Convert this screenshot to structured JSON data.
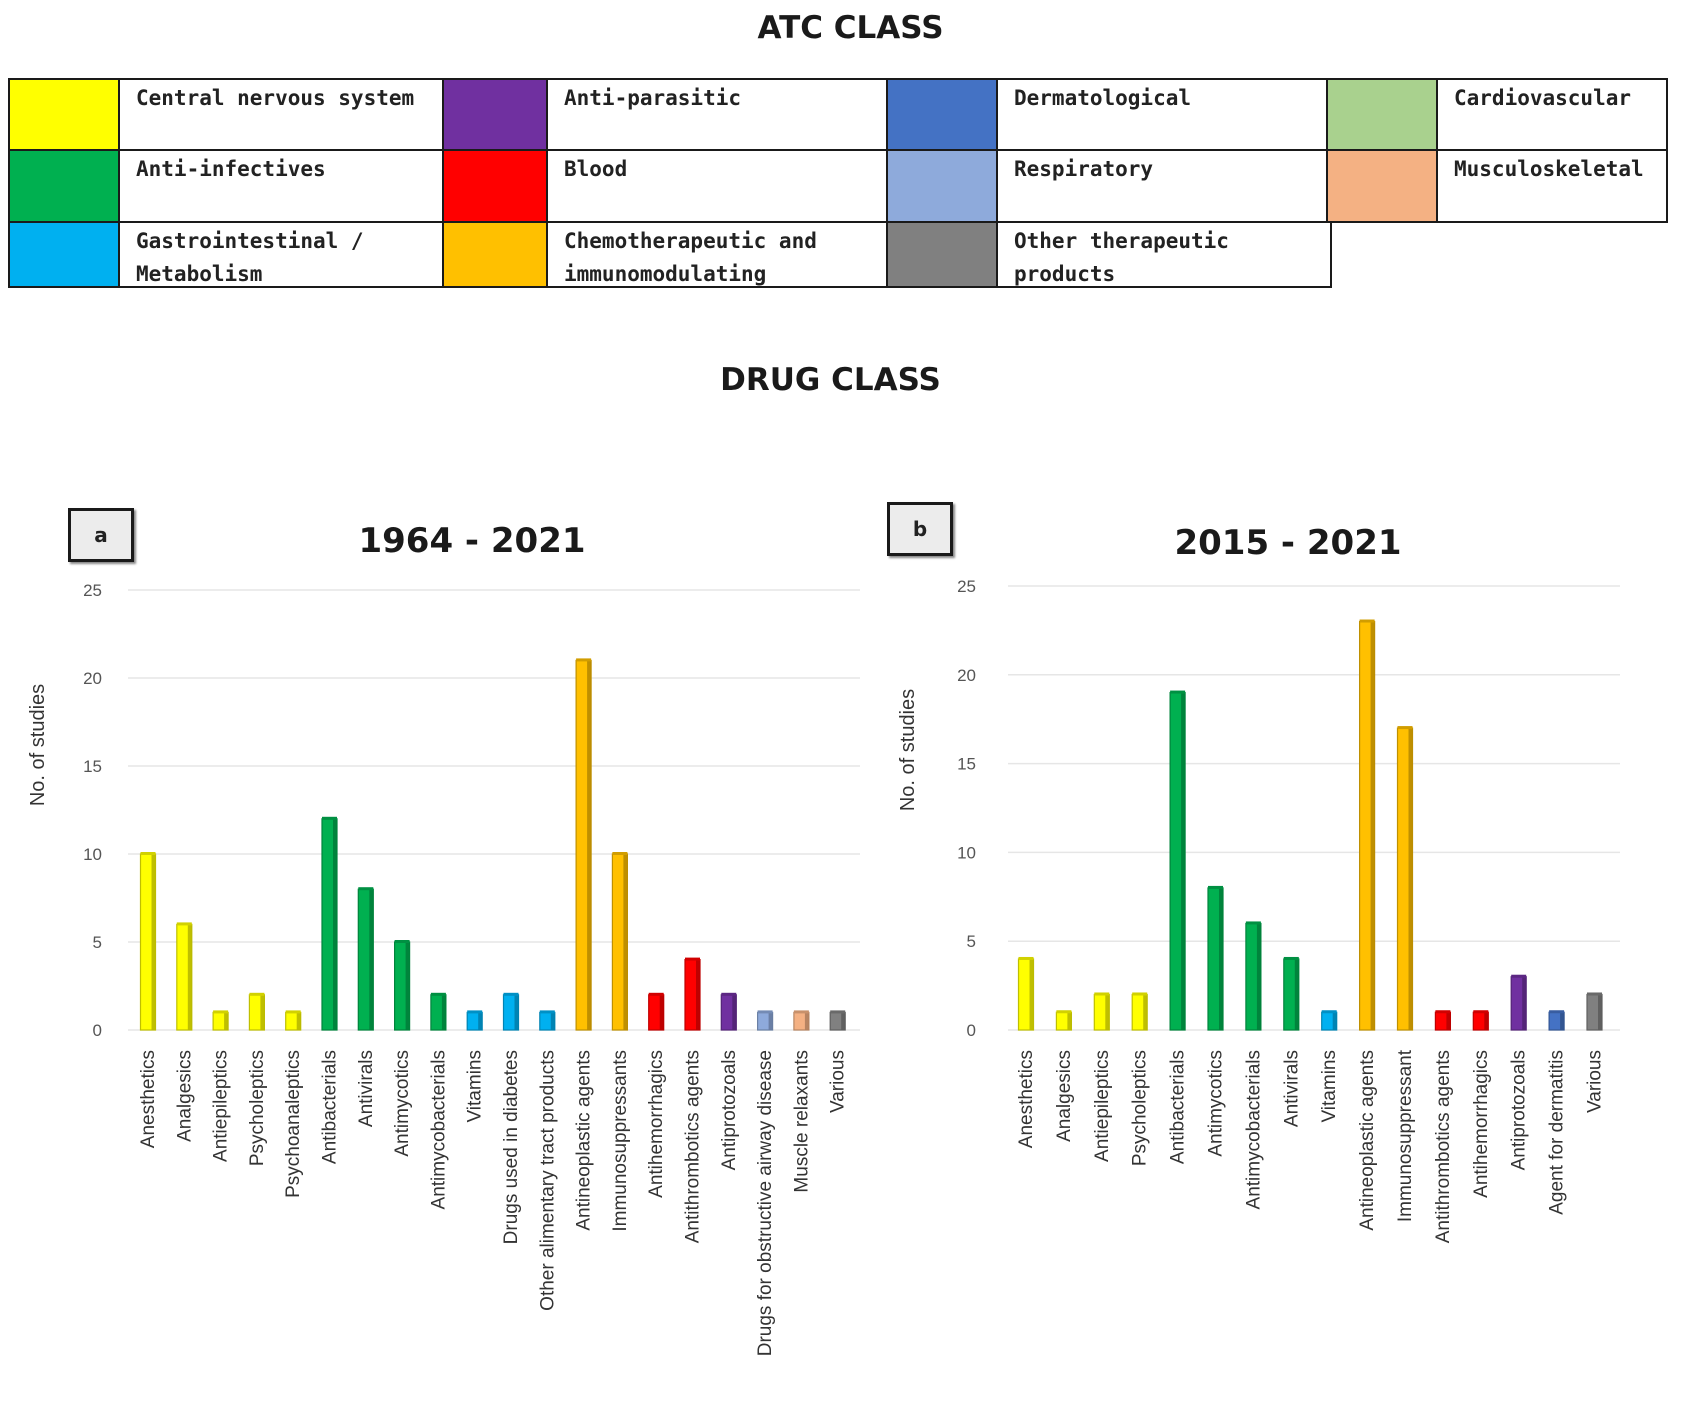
{
  "headings": {
    "atc": "ATC CLASS",
    "drug": "DRUG CLASS"
  },
  "colors": {
    "cns": "#ffff00",
    "antiparasitic": "#7030a0",
    "dermatological": "#4472c4",
    "cardiovascular": "#a9d18e",
    "antiinfectives": "#00b050",
    "blood": "#ff0000",
    "respiratory": "#8eaadb",
    "musculoskeletal": "#f4b183",
    "gastro": "#00b0f0",
    "chemo": "#ffc000",
    "other": "#808080"
  },
  "legend": [
    {
      "label": [
        "Central nervous system"
      ],
      "color_key": "cns"
    },
    {
      "label": [
        "Anti-parasitic"
      ],
      "color_key": "antiparasitic"
    },
    {
      "label": [
        "Dermatological"
      ],
      "color_key": "dermatological"
    },
    {
      "label": [
        "Cardiovascular"
      ],
      "color_key": "cardiovascular"
    },
    {
      "label": [
        "Anti-infectives"
      ],
      "color_key": "antiinfectives"
    },
    {
      "label": [
        "Blood"
      ],
      "color_key": "blood"
    },
    {
      "label": [
        "Respiratory"
      ],
      "color_key": "respiratory"
    },
    {
      "label": [
        "Musculoskeletal"
      ],
      "color_key": "musculoskeletal"
    },
    {
      "label": [
        "Gastrointestinal /",
        "Metabolism"
      ],
      "color_key": "gastro"
    },
    {
      "label": [
        "Chemotherapeutic and",
        "immunomodulating"
      ],
      "color_key": "chemo"
    },
    {
      "label": [
        "Other therapeutic",
        "products"
      ],
      "color_key": "other"
    }
  ],
  "chart_data": [
    {
      "type": "bar",
      "panel": "a",
      "title": "1964 - 2021",
      "ylabel": "No. of studies",
      "ylim": [
        0,
        25
      ],
      "yticks": [
        0,
        5,
        10,
        15,
        20,
        25
      ],
      "grid": true,
      "categories": [
        "Anesthetics",
        "Analgesics",
        "Antiepileptics",
        "Psycholeptics",
        "Psychoanaleptics",
        "Antibacterials",
        "Antivirals",
        "Antimycotics",
        "Antimycobacterials",
        "Vitamins",
        "Drugs used in diabetes",
        "Other alimentary tract products",
        "Antineoplastic agents",
        "Immunosuppressants",
        "Antihemorrhagics",
        "Antithrombotics agents",
        "Antiprotozoals",
        "Drugs for obstructive airway disease",
        "Muscle relaxants",
        "Various"
      ],
      "values": [
        10,
        6,
        1,
        2,
        1,
        12,
        8,
        5,
        2,
        1,
        2,
        1,
        21,
        10,
        2,
        4,
        2,
        1,
        1,
        1
      ],
      "color_keys": [
        "cns",
        "cns",
        "cns",
        "cns",
        "cns",
        "antiinfectives",
        "antiinfectives",
        "antiinfectives",
        "antiinfectives",
        "gastro",
        "gastro",
        "gastro",
        "chemo",
        "chemo",
        "blood",
        "blood",
        "antiparasitic",
        "respiratory",
        "musculoskeletal",
        "other"
      ]
    },
    {
      "type": "bar",
      "panel": "b",
      "title": "2015 - 2021",
      "ylabel": "No. of studies",
      "ylim": [
        0,
        25
      ],
      "yticks": [
        0,
        5,
        10,
        15,
        20,
        25
      ],
      "grid": true,
      "categories": [
        "Anesthetics",
        "Analgesics",
        "Antiepileptics",
        "Psycholeptics",
        "Antibacterials",
        "Antimycotics",
        "Antimycobacterials",
        "Antivirals",
        "Vitamins",
        "Antineoplastic agents",
        "Immunosuppressant",
        "Antithrombotics agents",
        "Antihemorrhagics",
        "Antiprotozoals",
        "Agent for dermatitis",
        "Various"
      ],
      "values": [
        4,
        1,
        2,
        2,
        19,
        8,
        6,
        4,
        1,
        23,
        17,
        1,
        1,
        3,
        1,
        2
      ],
      "color_keys": [
        "cns",
        "cns",
        "cns",
        "cns",
        "antiinfectives",
        "antiinfectives",
        "antiinfectives",
        "antiinfectives",
        "gastro",
        "chemo",
        "chemo",
        "blood",
        "blood",
        "antiparasitic",
        "dermatological",
        "other"
      ]
    }
  ]
}
